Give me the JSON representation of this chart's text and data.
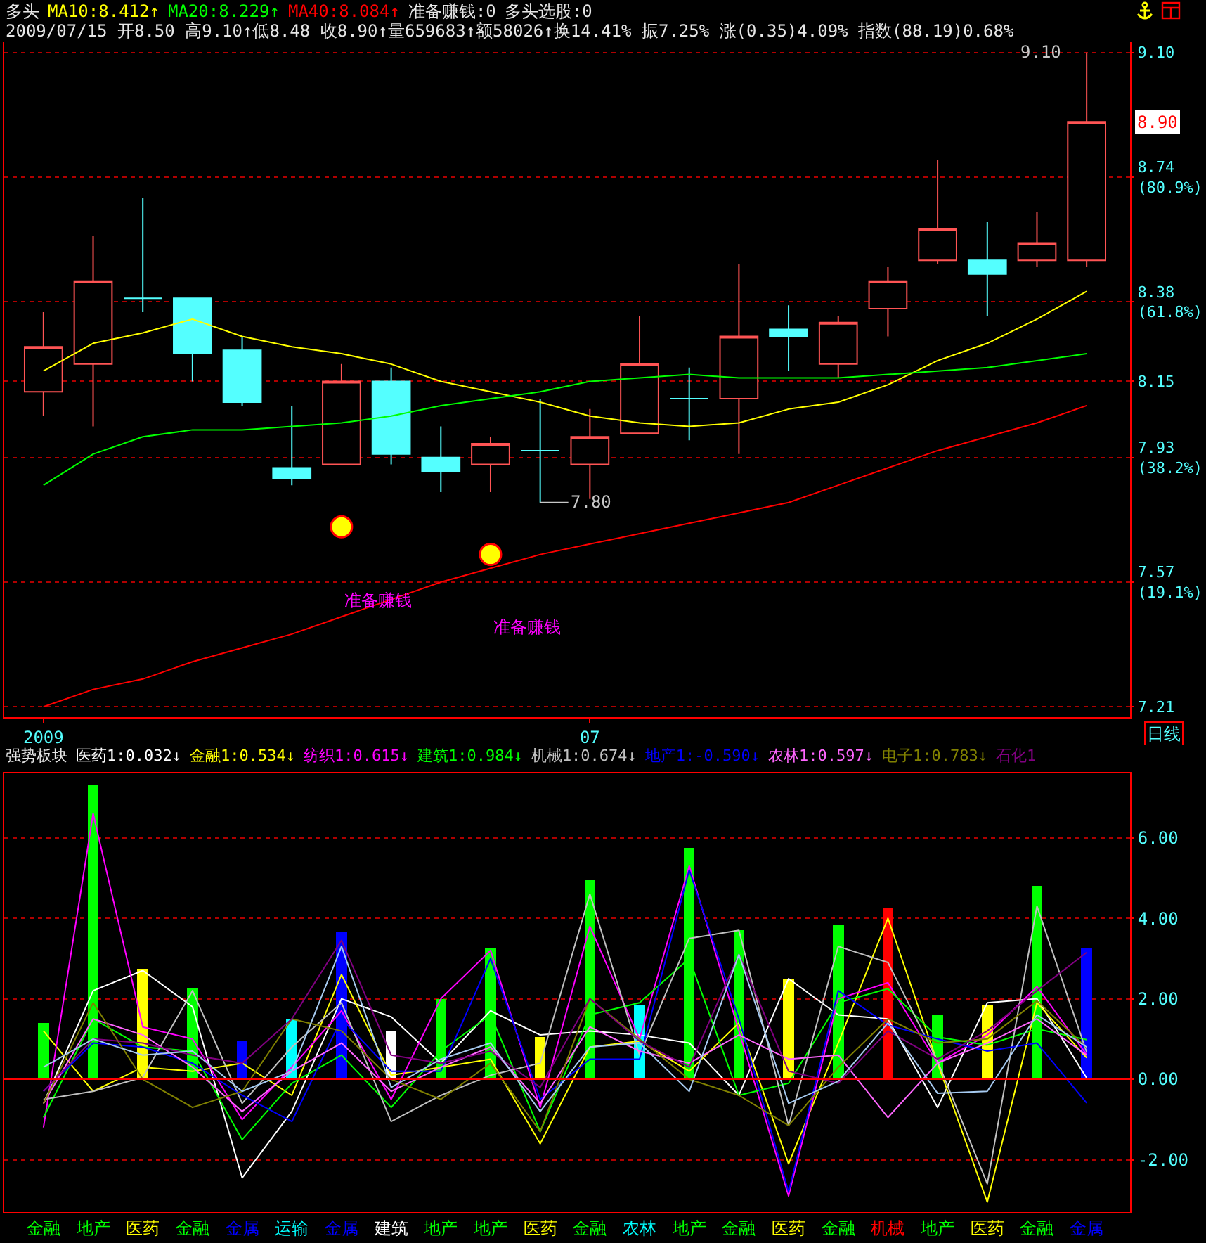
{
  "chart_data": [
    {
      "type": "candlestick",
      "title": "多头",
      "subtitle": "2009/07/15 开8.50 高9.10↑低8.48 收8.90↑量659683↑额58026↑换14.41% 振7.25% 涨(0.35)4.09% 指数(88.19)0.68%",
      "xlabel": "日线",
      "categories": [
        "2009",
        null,
        null,
        null,
        null,
        null,
        null,
        null,
        null,
        null,
        null,
        "07",
        null,
        null,
        null,
        null,
        null,
        null,
        null,
        null,
        null,
        null
      ],
      "ohlc": [
        [
          8.12,
          8.35,
          8.05,
          8.25
        ],
        [
          8.2,
          8.57,
          8.02,
          8.44
        ],
        [
          8.39,
          8.68,
          8.35,
          8.39
        ],
        [
          8.39,
          8.39,
          8.15,
          8.23
        ],
        [
          8.24,
          8.28,
          8.08,
          8.09
        ],
        [
          7.9,
          8.08,
          7.85,
          7.87
        ],
        [
          7.91,
          8.2,
          7.91,
          8.15
        ],
        [
          8.15,
          8.19,
          7.91,
          7.94
        ],
        [
          7.93,
          8.02,
          7.83,
          7.89
        ],
        [
          7.91,
          7.99,
          7.83,
          7.97
        ],
        [
          7.95,
          8.1,
          7.8,
          7.95
        ],
        [
          7.91,
          8.07,
          7.81,
          7.99
        ],
        [
          8.0,
          8.34,
          8.0,
          8.2
        ],
        [
          8.1,
          8.19,
          7.98,
          8.1
        ],
        [
          8.1,
          8.49,
          7.94,
          8.28
        ],
        [
          8.3,
          8.37,
          8.18,
          8.28
        ],
        [
          8.2,
          8.34,
          8.16,
          8.32
        ],
        [
          8.36,
          8.48,
          8.28,
          8.44
        ],
        [
          8.5,
          8.79,
          8.49,
          8.59
        ],
        [
          8.5,
          8.61,
          8.34,
          8.46
        ],
        [
          8.5,
          8.64,
          8.48,
          8.55
        ],
        [
          8.5,
          9.1,
          8.48,
          8.9
        ]
      ],
      "colors": [
        "#ff5454",
        "#ff5454",
        "#54ffff",
        "#54ffff",
        "#54ffff",
        "#54ffff",
        "#ff5454",
        "#54ffff",
        "#54ffff",
        "#ff5454",
        "#54ffff",
        "#ff5454",
        "#ff5454",
        "#54ffff",
        "#ff5454",
        "#54ffff",
        "#ff5454",
        "#ff5454",
        "#ff5454",
        "#54ffff",
        "#ff5454",
        "#ff5454"
      ],
      "series": [
        {
          "name": "MA10:8.412↑",
          "type": "line",
          "color": "#ffff00",
          "values": [
            8.18,
            8.26,
            8.29,
            8.33,
            8.28,
            8.25,
            8.23,
            8.2,
            8.15,
            8.12,
            8.09,
            8.05,
            8.03,
            8.02,
            8.03,
            8.07,
            8.09,
            8.14,
            8.21,
            8.26,
            8.33,
            8.41
          ]
        },
        {
          "name": "MA20:8.229↑",
          "type": "line",
          "color": "#00ff00",
          "values": [
            7.85,
            7.94,
            7.99,
            8.01,
            8.01,
            8.02,
            8.03,
            8.05,
            8.08,
            8.1,
            8.12,
            8.15,
            8.16,
            8.17,
            8.16,
            8.16,
            8.16,
            8.17,
            8.18,
            8.19,
            8.21,
            8.23
          ]
        },
        {
          "name": "MA40:8.084↑",
          "type": "line",
          "color": "#ff0000",
          "values": [
            7.21,
            7.26,
            7.29,
            7.34,
            7.38,
            7.42,
            7.47,
            7.52,
            7.57,
            7.61,
            7.65,
            7.68,
            7.71,
            7.74,
            7.77,
            7.8,
            7.85,
            7.9,
            7.95,
            7.99,
            8.03,
            8.08
          ]
        },
        {
          "type": "scatter",
          "color": "#ffff00",
          "marker": "circle",
          "values": [
            null,
            null,
            null,
            null,
            null,
            null,
            7.73,
            null,
            null,
            7.65,
            null,
            null,
            null,
            null,
            null,
            null,
            null,
            null,
            null,
            null,
            null,
            null
          ]
        }
      ],
      "ylim": [
        7.18,
        9.13
      ],
      "yticks": [
        {
          "value": 9.1,
          "label": "9.10"
        },
        {
          "value": 8.74,
          "label": "8.74\n(80.9%)"
        },
        {
          "value": 8.38,
          "label": "8.38\n(61.8%)"
        },
        {
          "value": 8.15,
          "label": "8.15"
        },
        {
          "value": 7.93,
          "label": "7.93\n(38.2%)"
        },
        {
          "value": 7.57,
          "label": "7.57\n(19.1%)"
        },
        {
          "value": 7.21,
          "label": "7.21"
        }
      ],
      "grid": "y",
      "legend": "top left",
      "annotations": [
        "准备赚钱:0",
        "多头选股:0",
        "9.10",
        {
          "text": "7.80",
          "y": 7.8
        },
        "8.90",
        "准备赚钱",
        "准备赚钱"
      ]
    },
    {
      "type": "bar",
      "title": "强势板块",
      "categories": [
        "金融",
        "地产",
        "医药",
        "金融",
        "金属",
        "运输",
        "金属",
        "建筑",
        "地产",
        "地产",
        "医药",
        "金融",
        "农林",
        "地产",
        "金融",
        "医药",
        "金融",
        "机械",
        "地产",
        "医药",
        "金融",
        "金属"
      ],
      "series": [
        {
          "type": "bar",
          "colors": [
            "#00ff00",
            "#00ff00",
            "#ffff00",
            "#00ff00",
            "#0000ff",
            "#00ffff",
            "#0000ff",
            "#ffffff",
            "#00ff00",
            "#00ff00",
            "#ffff00",
            "#00ff00",
            "#00ffff",
            "#00ff00",
            "#00ff00",
            "#ffff00",
            "#00ff00",
            "#ff0000",
            "#00ff00",
            "#ffff00",
            "#00ff00",
            "#0000ff"
          ],
          "values": [
            1.4,
            7.3,
            2.75,
            2.25,
            0.95,
            1.5,
            3.65,
            1.2,
            2.0,
            3.25,
            1.05,
            4.95,
            1.85,
            5.75,
            3.7,
            2.5,
            3.85,
            4.25,
            1.6,
            1.85,
            4.8,
            3.25
          ]
        },
        {
          "name": "医药1:0.032↓",
          "type": "line",
          "color": "#ffffff",
          "values": [
            -0.6,
            2.2,
            2.7,
            1.8,
            -2.45,
            -0.8,
            2.0,
            1.55,
            0.4,
            1.7,
            1.1,
            1.2,
            1.1,
            0.9,
            -0.4,
            2.5,
            1.6,
            1.5,
            -0.7,
            1.9,
            2.0,
            0.032
          ]
        },
        {
          "name": "金融1:0.534↓",
          "type": "line",
          "color": "#ffff00",
          "values": [
            1.2,
            -0.3,
            0.3,
            0.2,
            0.4,
            -0.4,
            2.6,
            0.1,
            0.3,
            0.5,
            -1.6,
            0.8,
            0.95,
            0.2,
            1.4,
            -2.1,
            0.9,
            4.0,
            0.4,
            -3.05,
            1.9,
            0.534
          ]
        },
        {
          "name": "纺织1:0.615↓",
          "type": "line",
          "color": "#ff00ff",
          "values": [
            -1.2,
            6.6,
            1.3,
            1.0,
            -1.0,
            0.3,
            1.7,
            -0.5,
            2.0,
            3.2,
            -0.7,
            3.8,
            1.0,
            5.3,
            1.2,
            -2.9,
            2.0,
            2.4,
            0.4,
            1.1,
            2.3,
            0.615
          ]
        },
        {
          "name": "建筑1:0.984↓",
          "type": "line",
          "color": "#00ff00",
          "values": [
            -0.95,
            1.5,
            0.8,
            0.7,
            -1.5,
            -0.1,
            0.6,
            -0.7,
            0.7,
            1.6,
            -1.3,
            1.6,
            1.9,
            3.0,
            -0.4,
            -0.1,
            1.9,
            2.25,
            1.05,
            0.85,
            1.25,
            0.984
          ]
        },
        {
          "name": "机械1:0.674↓",
          "type": "line",
          "color": "#c0c0c0",
          "values": [
            -0.5,
            -0.3,
            0.05,
            2.2,
            -0.6,
            0.8,
            1.9,
            -1.05,
            -0.4,
            0.1,
            0.4,
            4.6,
            0.6,
            3.5,
            3.7,
            -1.15,
            3.3,
            2.9,
            0.45,
            -2.6,
            4.3,
            0.674
          ]
        },
        {
          "name": "地产1:-0.590↓",
          "type": "line",
          "color": "#0000ff",
          "values": [
            -0.3,
            0.9,
            0.8,
            0.4,
            -0.4,
            -1.05,
            1.5,
            0.2,
            0.2,
            3.0,
            -0.5,
            0.5,
            0.5,
            5.2,
            1.5,
            -2.8,
            2.2,
            1.35,
            1.0,
            0.7,
            0.9,
            -0.59
          ]
        },
        {
          "name": "农林1:0.597↓",
          "type": "line",
          "color": "#ff66ff",
          "values": [
            -0.6,
            1.5,
            1.1,
            0.3,
            -0.8,
            0.2,
            0.9,
            -0.3,
            0.3,
            0.8,
            -0.6,
            1.3,
            0.7,
            0.4,
            1.1,
            0.5,
            0.6,
            -0.95,
            0.4,
            0.9,
            1.5,
            0.597
          ]
        },
        {
          "name": "电子1:0.783↓",
          "type": "line",
          "color": "#808000",
          "values": [
            -0.6,
            1.9,
            0.0,
            -0.7,
            -0.3,
            1.5,
            1.2,
            0.0,
            -0.5,
            0.4,
            -1.3,
            2.0,
            1.0,
            0.0,
            -0.4,
            -1.15,
            0.3,
            1.5,
            0.9,
            1.0,
            1.95,
            0.783
          ]
        },
        {
          "name": "石化1",
          "type": "line",
          "color": "#800080",
          "values": [
            -0.3,
            1.0,
            0.9,
            0.6,
            0.4,
            1.5,
            3.45,
            0.6,
            0.4,
            0.7,
            -0.2,
            2.0,
            0.95,
            0.3,
            3.1,
            0.2,
            -0.1,
            1.2,
            0.5,
            1.2,
            2.2,
            3.15
          ]
        },
        {
          "type": "line",
          "color": "#a6caf0",
          "values": [
            0.3,
            1.0,
            0.6,
            0.7,
            -0.3,
            0.2,
            3.3,
            -0.2,
            0.5,
            0.9,
            -0.8,
            0.8,
            0.9,
            -0.3,
            3.1,
            -0.6,
            -0.05,
            1.4,
            -0.35,
            -0.3,
            1.6,
            0.8
          ]
        }
      ],
      "ylim": [
        -3.3,
        7.6
      ],
      "yticks": [
        {
          "value": 6,
          "label": "6.00"
        },
        {
          "value": 4,
          "label": "4.00"
        },
        {
          "value": 2,
          "label": "2.00"
        },
        {
          "value": 0,
          "label": "0.00"
        },
        {
          "value": -2,
          "label": "-2.00"
        }
      ],
      "grid": "y",
      "legend": "top left",
      "ref_lines": [
        {
          "axis": "y",
          "value": 0,
          "color": "#ff0000"
        }
      ]
    }
  ]
}
